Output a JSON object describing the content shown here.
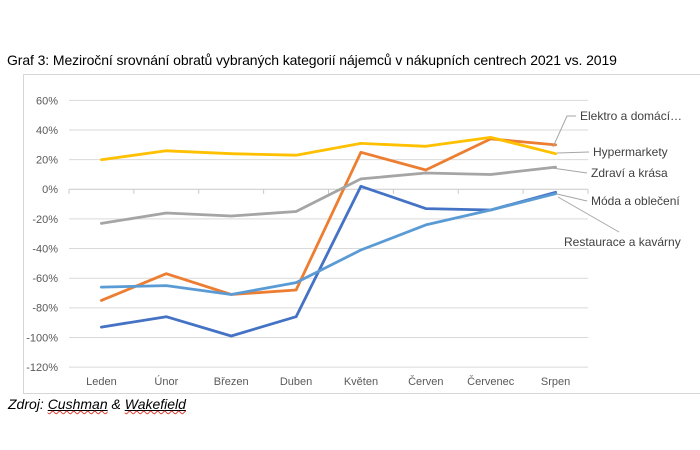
{
  "page": {
    "title": "Graf 3: Meziroční srovnání obratů vybraných kategorií nájemců v nákupních centrech 2021 vs. 2019",
    "source": {
      "prefix": "Zdroj: ",
      "company_word1": "Cushman",
      "separator": " & ",
      "company_word2": "Wakefield"
    }
  },
  "chart_data": {
    "type": "line",
    "title": "Graf 3: Meziroční srovnání obratů vybraných kategorií nájemců v nákupních centrech 2021 vs. 2019",
    "categories": [
      "Leden",
      "Únor",
      "Březen",
      "Duben",
      "Květen",
      "Červen",
      "Červenec",
      "Srpen"
    ],
    "series": [
      {
        "name": "Elektro a domácí…",
        "color": "#ED7D31",
        "values": [
          -75,
          -57,
          -71,
          -68,
          25,
          13,
          34,
          30
        ]
      },
      {
        "name": "Hypermarkety",
        "color": "#FFC000",
        "values": [
          20,
          26,
          24,
          23,
          31,
          29,
          35,
          24
        ]
      },
      {
        "name": "Zdraví a krása",
        "color": "#A5A5A5",
        "values": [
          -23,
          -16,
          -18,
          -15,
          7,
          11,
          10,
          15
        ]
      },
      {
        "name": "Móda a oblečení",
        "color": "#4472C4",
        "values": [
          -93,
          -86,
          -99,
          -86,
          2,
          -13,
          -14,
          -2
        ]
      },
      {
        "name": "Restaurace a kavárny",
        "color": "#5B9BD5",
        "values": [
          -66,
          -65,
          -71,
          -63,
          -41,
          -24,
          -14,
          -3
        ]
      }
    ],
    "ylim": [
      -120,
      60
    ],
    "ytick_step": 20,
    "ytick_format": "percent",
    "grid": true,
    "legend_position": "right-end-of-line-labels",
    "colors": {
      "gridline": "#D9D9D9",
      "axis_line": "#C9C9C9",
      "axis_label": "#595959",
      "series_label": "#404040",
      "leader_line": "#A6A6A6"
    }
  }
}
